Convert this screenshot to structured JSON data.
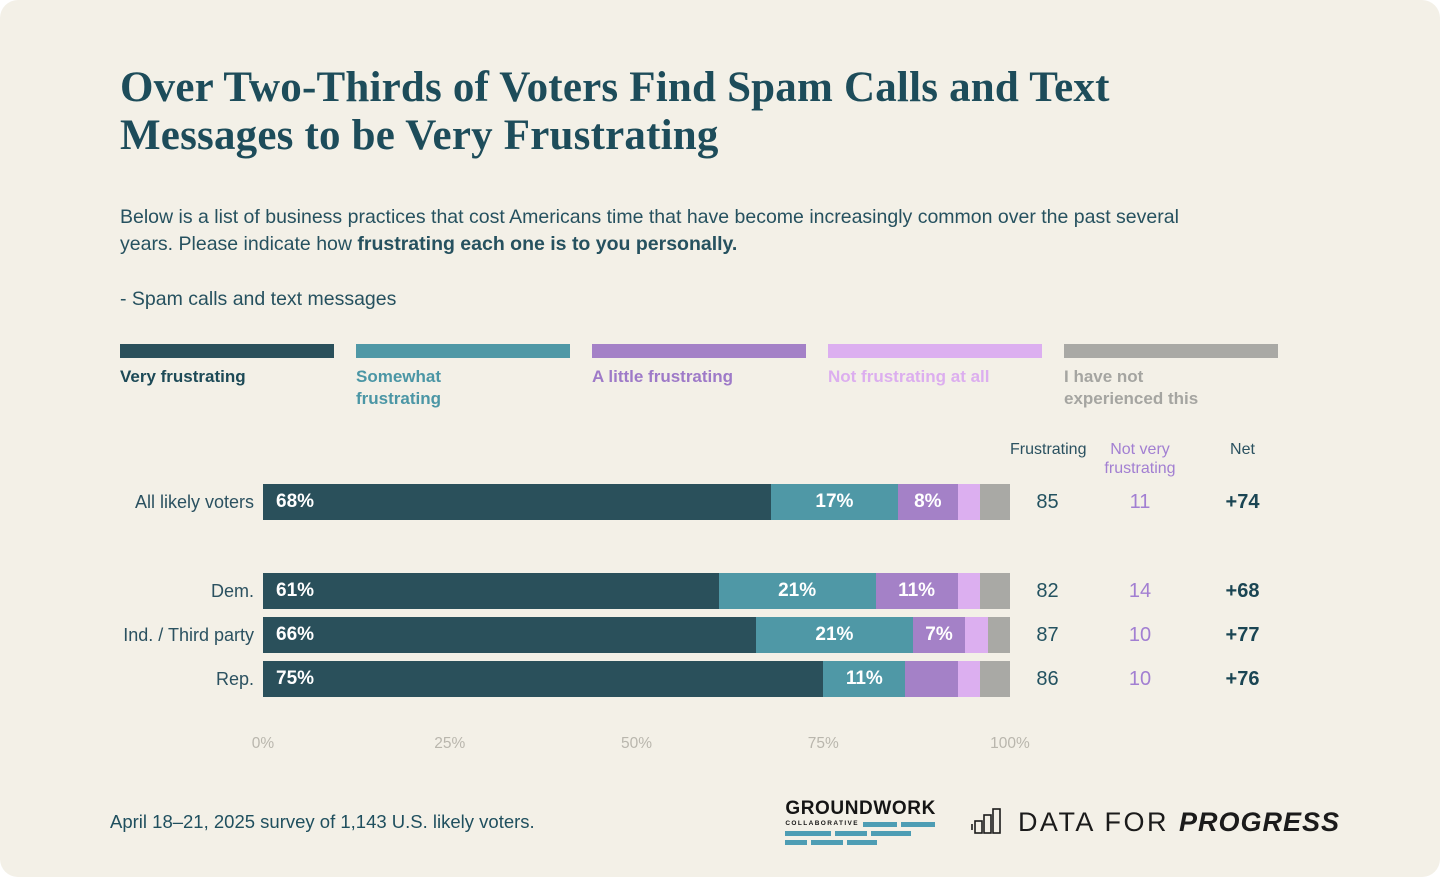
{
  "page": {
    "background": "#f3f0e7",
    "title": "Over Two-Thirds of Voters Find Spam Calls and Text Messages to be Very Frustrating",
    "subtitle_regular": "Below is a list of business practices that cost Americans time that have become increasingly common over the past several years. Please indicate how ",
    "subtitle_bold": "frustrating each one is to you personally.",
    "item_label": "- Spam calls and text messages",
    "footnote": "April 18–21, 2025 survey of 1,143 U.S. likely voters."
  },
  "legend": [
    {
      "label": "Very frustrating",
      "color": "#2a505b",
      "label_color": "#1d4a57"
    },
    {
      "label": "Somewhat frustrating",
      "color": "#4f98a6",
      "label_color": "#4b96a5"
    },
    {
      "label": "A little frustrating",
      "color": "#a481c7",
      "label_color": "#9e7ac8"
    },
    {
      "label": "Not frustrating at all",
      "color": "#dcaff0",
      "label_color": "#dcaeef"
    },
    {
      "label": "I have not experienced this",
      "color": "#a9a9a5",
      "label_color": "#a5a5a1"
    }
  ],
  "chart_data": {
    "type": "bar",
    "stacked": true,
    "orientation": "horizontal",
    "title": "Over Two-Thirds of Voters Find Spam Calls and Text Messages to be Very Frustrating",
    "x_axis": {
      "ticks": [
        "0%",
        "25%",
        "50%",
        "75%",
        "100%"
      ],
      "range": [
        0,
        100
      ],
      "grid": false
    },
    "series": [
      {
        "name": "Very frustrating",
        "color": "#2a505b"
      },
      {
        "name": "Somewhat frustrating",
        "color": "#4f98a6"
      },
      {
        "name": "A little frustrating",
        "color": "#a481c7"
      },
      {
        "name": "Not frustrating at all",
        "color": "#dcaff0"
      },
      {
        "name": "I have not experienced this",
        "color": "#a9a9a5"
      }
    ],
    "columns": [
      "Frustrating",
      "Not very frustrating",
      "Net"
    ],
    "rows": [
      {
        "key": "all-likely-voters",
        "label": "All likely voters",
        "values": [
          68,
          17,
          8,
          3,
          4
        ],
        "segment_labels": [
          "68%",
          "17%",
          "8%",
          "",
          ""
        ],
        "frustrating": 85,
        "not_very_frustrating": 11,
        "net": "+74"
      },
      {
        "key": "dem",
        "label": "Dem.",
        "values": [
          61,
          21,
          11,
          3,
          4
        ],
        "segment_labels": [
          "61%",
          "21%",
          "11%",
          "",
          ""
        ],
        "frustrating": 82,
        "not_very_frustrating": 14,
        "net": "+68"
      },
      {
        "key": "ind-third-party",
        "label": "Ind. / Third party",
        "values": [
          66,
          21,
          7,
          3,
          3
        ],
        "segment_labels": [
          "66%",
          "21%",
          "7%",
          "",
          ""
        ],
        "frustrating": 87,
        "not_very_frustrating": 10,
        "net": "+77"
      },
      {
        "key": "rep",
        "label": "Rep.",
        "values": [
          75,
          11,
          7,
          3,
          4
        ],
        "segment_labels": [
          "75%",
          "11%",
          "",
          "",
          ""
        ],
        "frustrating": 86,
        "not_very_frustrating": 10,
        "net": "+76"
      }
    ]
  },
  "logos": {
    "groundwork": {
      "name": "GROUNDWORK",
      "sub": "COLLABORATIVE",
      "bar_color": "#4d9db4"
    },
    "dfp": {
      "prefix": "DATA FOR ",
      "name": "PROGRESS"
    }
  }
}
